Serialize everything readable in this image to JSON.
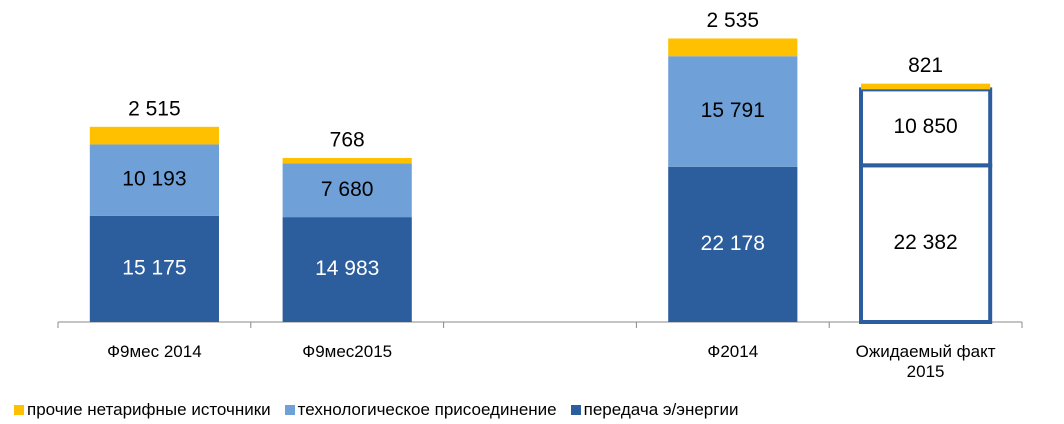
{
  "chart_data": {
    "type": "stacked_bar",
    "categories": [
      "Ф9мес 2014",
      "Ф9мес2015",
      null,
      "Ф2014",
      "Ожидаемый факт 2015"
    ],
    "series": [
      {
        "name": "передача э/энергии",
        "color": "#2c5d9c",
        "values": [
          15175,
          14983,
          null,
          22178,
          22382
        ],
        "value_labels": [
          "15 175",
          "14 983",
          null,
          "22 178",
          "22 382"
        ]
      },
      {
        "name": "технологическое присоединение",
        "color": "#6fa0d8",
        "values": [
          10193,
          7680,
          null,
          15791,
          10850
        ],
        "value_labels": [
          "10 193",
          "7 680",
          null,
          "15 791",
          "10 850"
        ]
      },
      {
        "name": "прочие нетарифные источники",
        "color": "#ffc000",
        "values": [
          2515,
          768,
          null,
          2535,
          821
        ],
        "value_labels": [
          "2 515",
          "768",
          null,
          "2 535",
          "821"
        ]
      }
    ],
    "hollow": [
      false,
      false,
      false,
      false,
      true
    ],
    "ylim": [
      0,
      46000
    ]
  }
}
